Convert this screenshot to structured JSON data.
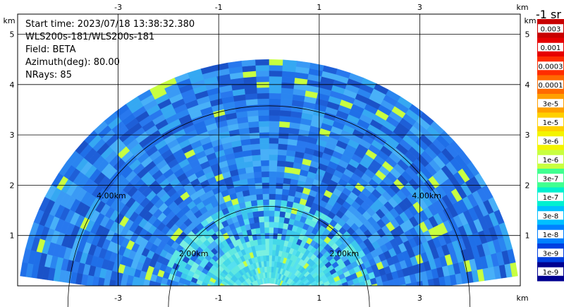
{
  "info": {
    "start_time": "Start time: 2023/07/18 13:38:32.380",
    "instrument": "WLS200s-181/WLS200s-181",
    "field": "Field: BETA",
    "azimuth": "Azimuth(deg): 80.00",
    "nrays": "NRays: 85"
  },
  "colorbar": {
    "title": "-1 sr",
    "labels": [
      "0.003",
      "0.001",
      "0.0003",
      "0.0001",
      "3e-5",
      "1e-5",
      "3e-6",
      "1e-6",
      "3e-7",
      "1e-7",
      "3e-8",
      "1e-8",
      "3e-9",
      "1e-9"
    ],
    "colors": [
      "#c80000",
      "#e60000",
      "#ff2d00",
      "#ff6a00",
      "#ffa000",
      "#ffd000",
      "#f4f400",
      "#c8ff40",
      "#40ff90",
      "#00f0d0",
      "#00c0ff",
      "#0080ff",
      "#0040e0",
      "#000090"
    ]
  },
  "chart_data": {
    "type": "heatmap",
    "x_unit": "km",
    "y_unit": "km",
    "x_ticks": [
      -3,
      -1,
      1,
      3
    ],
    "y_ticks": [
      1,
      2,
      3,
      4,
      5
    ],
    "xlim": [
      -5.0,
      5.0
    ],
    "ylim": [
      0.0,
      5.4
    ],
    "range_rings": [
      {
        "radius_km": 2.0,
        "label": "2.00km"
      },
      {
        "radius_km": 4.0,
        "label": "4.00km"
      }
    ],
    "max_range_km": 5.0,
    "origin_km": [
      0.0,
      -0.5
    ],
    "color_scale": "log",
    "value_range": [
      1e-09,
      0.003
    ]
  }
}
